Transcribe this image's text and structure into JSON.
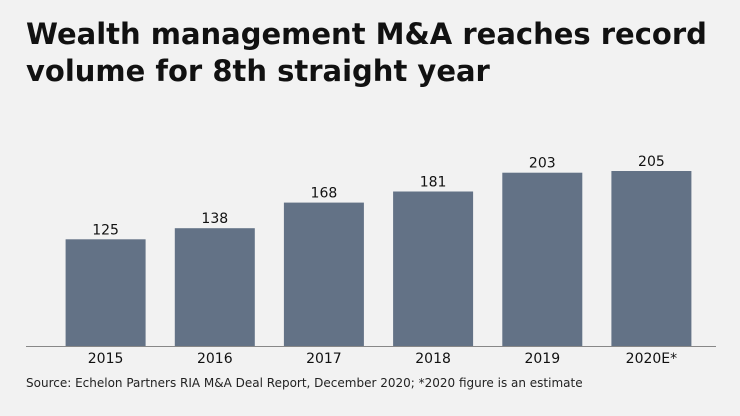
{
  "title_line1": "Wealth management M&A reaches record",
  "title_line2": "volume for 8th straight year",
  "source": "Source: Echelon Partners RIA M&A Deal Report, December 2020; *2020 figure is an estimate",
  "colors": {
    "bar": "#637286",
    "background": "#f2f2f2",
    "text": "#111111",
    "axis": "#888888"
  },
  "chart_data": {
    "type": "bar",
    "categories": [
      "2015",
      "2016",
      "2017",
      "2018",
      "2019",
      "2020E*"
    ],
    "values": [
      125,
      138,
      168,
      181,
      203,
      205
    ],
    "title": "Wealth management M&A reaches record volume for 8th straight year",
    "xlabel": "",
    "ylabel": "",
    "ylim": [
      0,
      205
    ],
    "grid": false,
    "data_labels": true
  }
}
